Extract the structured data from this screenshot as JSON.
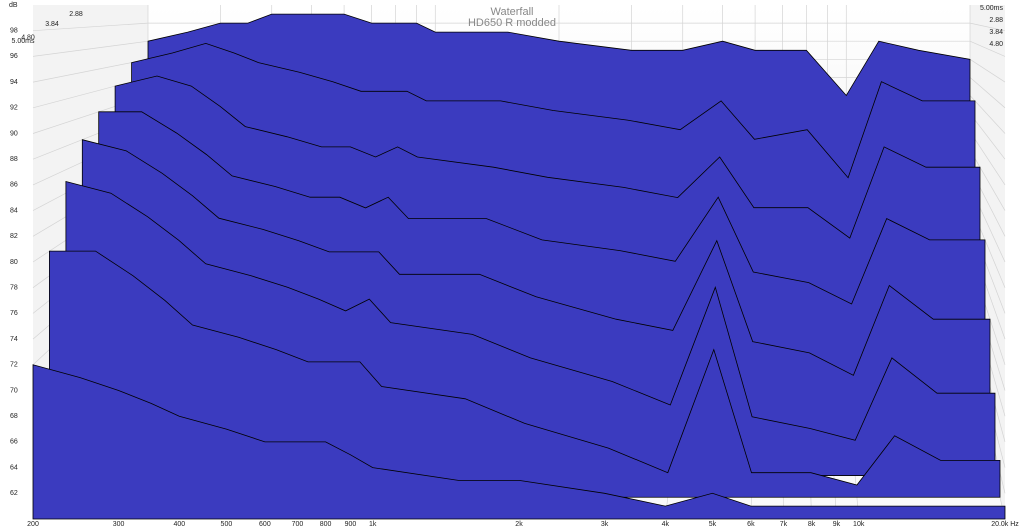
{
  "chart_data": {
    "type": "waterfall",
    "title": "Waterfall",
    "subtitle": "HD650 R modded",
    "ylabel": "dB",
    "xscale": "log",
    "grid": true,
    "color": "#3b3bbf",
    "x": [
      200,
      250,
      300,
      350,
      400,
      500,
      600,
      700,
      800,
      900,
      1000,
      1500,
      2000,
      3000,
      4000,
      5000,
      6000,
      8000,
      10000,
      12000,
      15000,
      20000
    ],
    "series": [
      {
        "values": [
          96,
          97,
          98,
          98,
          99,
          99,
          99,
          98,
          98,
          98,
          97,
          97,
          96,
          95,
          95,
          96,
          95,
          95,
          90,
          96,
          95,
          94
        ]
      },
      {
        "values": [
          94,
          95,
          96,
          95,
          94,
          93,
          92,
          91,
          91,
          91,
          90,
          90,
          89,
          88,
          87,
          90,
          86,
          87,
          82,
          92,
          90,
          90
        ]
      },
      {
        "values": [
          92,
          93,
          92,
          90,
          88,
          87,
          86,
          86,
          85,
          86,
          85,
          84,
          83,
          82,
          81,
          85,
          80,
          80,
          77,
          86,
          84,
          84
        ]
      },
      {
        "values": [
          90,
          90,
          88,
          86,
          84,
          83,
          82,
          82,
          81,
          82,
          80,
          80,
          78,
          77,
          76,
          82,
          75,
          74,
          72,
          80,
          78,
          78
        ]
      },
      {
        "values": [
          88,
          87,
          85,
          83,
          81,
          80,
          79,
          78,
          78,
          78,
          76,
          76,
          74,
          72,
          71,
          79,
          70,
          69,
          67,
          75,
          72,
          72
        ]
      },
      {
        "values": [
          85,
          84,
          82,
          80,
          78,
          77,
          76,
          75,
          74,
          75,
          73,
          72,
          70,
          68,
          66,
          76,
          65,
          64,
          63,
          70,
          67,
          67
        ]
      },
      {
        "values": [
          80,
          80,
          78,
          76,
          74,
          73,
          72,
          71,
          71,
          71,
          69,
          68,
          66,
          64,
          62,
          72,
          62,
          62,
          61,
          65,
          63,
          63
        ]
      },
      {
        "values": [
          72,
          71,
          70,
          69,
          68,
          67,
          66,
          66,
          66,
          65,
          64,
          63,
          63,
          62,
          61,
          62,
          61,
          61,
          61,
          61,
          61,
          61
        ]
      }
    ],
    "xlim": [
      200,
      20000
    ],
    "xticks": [
      200,
      300,
      400,
      500,
      600,
      700,
      800,
      900,
      {
        "value": 1000,
        "label": "1k"
      },
      {
        "value": 2000,
        "label": "2k"
      },
      {
        "value": 3000,
        "label": "3k"
      },
      {
        "value": 4000,
        "label": "4k"
      },
      {
        "value": 5000,
        "label": "5k"
      },
      {
        "value": 6000,
        "label": "6k"
      },
      {
        "value": 7000,
        "label": "7k"
      },
      {
        "value": 8000,
        "label": "8k"
      },
      {
        "value": 9000,
        "label": "9k"
      },
      {
        "value": 10000,
        "label": "10k"
      },
      {
        "value": 20000,
        "label": "20.0k Hz"
      }
    ],
    "ylim": [
      60,
      100
    ],
    "yticks": [
      62,
      64,
      66,
      68,
      70,
      72,
      74,
      76,
      78,
      80,
      82,
      84,
      86,
      88,
      90,
      92,
      94,
      96,
      98
    ],
    "zlim": [
      0,
      5
    ],
    "zticks": [
      2.88,
      3.84,
      {
        "value": 4.8,
        "label": "4.80"
      },
      {
        "value": 5,
        "label": "5.00ms"
      }
    ]
  }
}
